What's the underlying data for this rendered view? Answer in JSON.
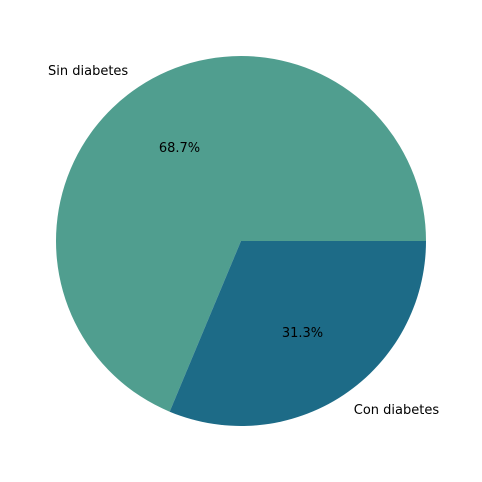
{
  "chart_data": {
    "type": "pie",
    "slices": [
      {
        "label": "Sin diabetes",
        "value": 68.7,
        "pct_label": "68.7%",
        "color": "#509e8f"
      },
      {
        "label": "Con diabetes",
        "value": 31.3,
        "pct_label": "31.3%",
        "color": "#1d6b87"
      }
    ],
    "start_angle_deg": 0,
    "direction": "counterclockwise"
  }
}
